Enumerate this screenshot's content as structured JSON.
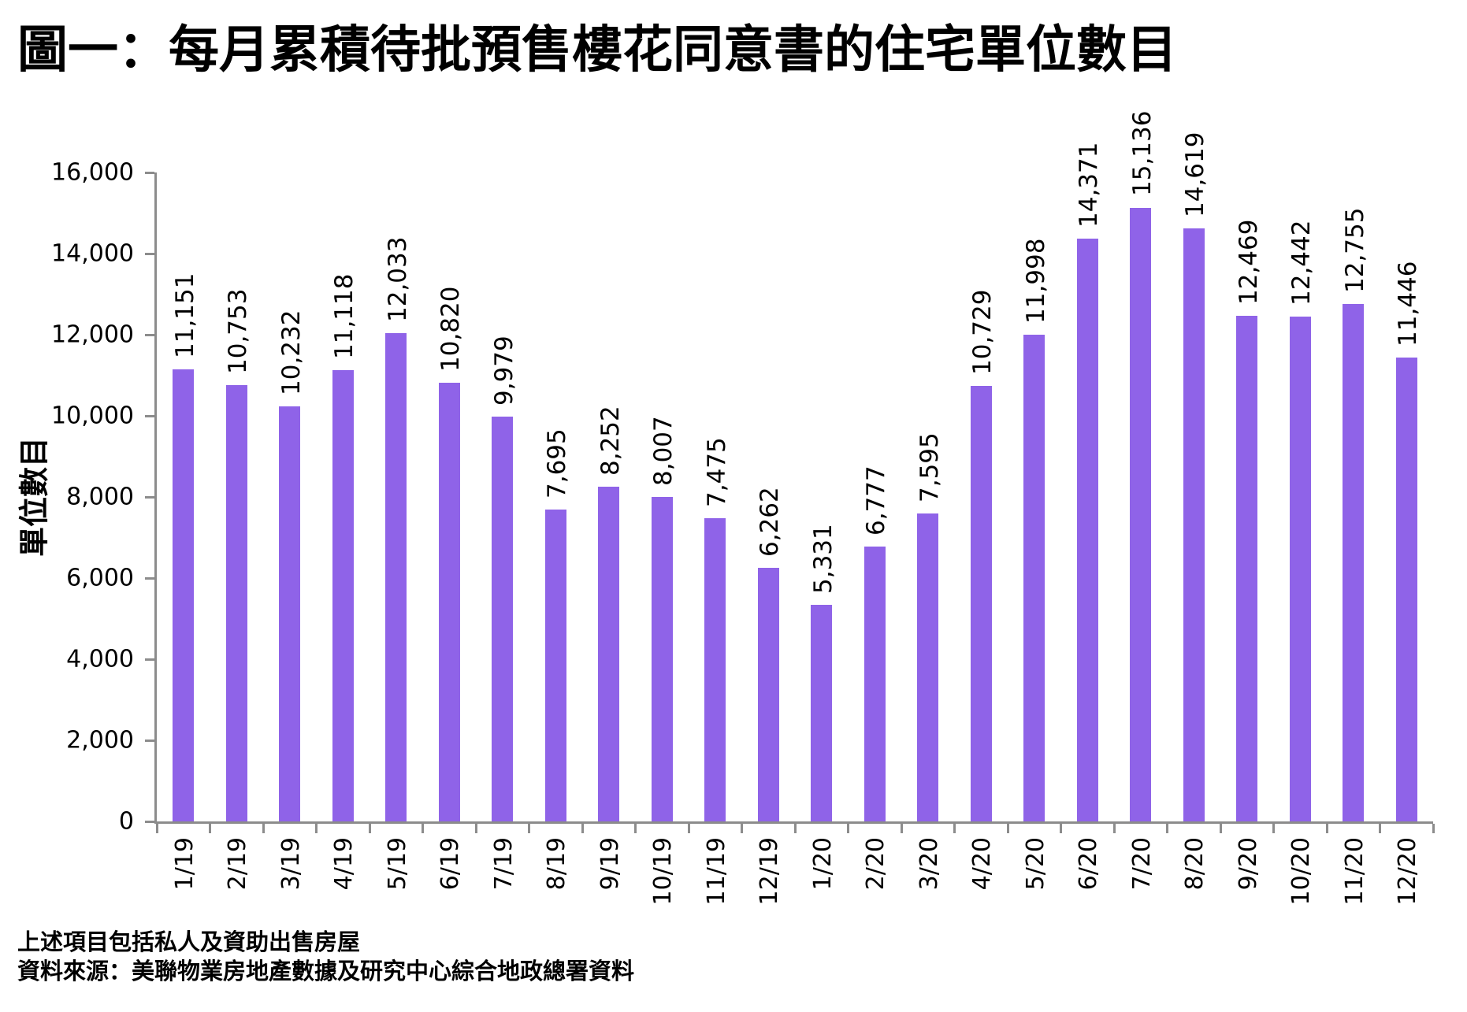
{
  "chart_data": {
    "type": "bar",
    "title": "圖一：每月累積待批預售樓花同意書的住宅單位數目",
    "categories": [
      "1/19",
      "2/19",
      "3/19",
      "4/19",
      "5/19",
      "6/19",
      "7/19",
      "8/19",
      "9/19",
      "10/19",
      "11/19",
      "12/19",
      "1/20",
      "2/20",
      "3/20",
      "4/20",
      "5/20",
      "6/20",
      "7/20",
      "8/20",
      "9/20",
      "10/20",
      "11/20",
      "12/20"
    ],
    "values": [
      11151,
      10753,
      10232,
      11118,
      12033,
      10820,
      9979,
      7695,
      8252,
      8007,
      7475,
      6262,
      5331,
      6777,
      7595,
      10729,
      11998,
      14371,
      15136,
      14619,
      12469,
      12442,
      12755,
      11446
    ],
    "xlabel": "",
    "ylabel": "單位數目",
    "ylim": [
      0,
      16000
    ],
    "ytick_step": 2000,
    "grid": false,
    "legend": "none",
    "value_labels_rotation_deg": -90,
    "xtick_rotation_deg": -90,
    "bar_color": "#8f63e8",
    "axis_color": "#8c8c8c",
    "text_color": "#000000"
  },
  "footnotes": {
    "line1": "上述項目包括私人及資助出售房屋",
    "line2": "資料來源：美聯物業房地產數據及研究中心綜合地政總署資料"
  }
}
